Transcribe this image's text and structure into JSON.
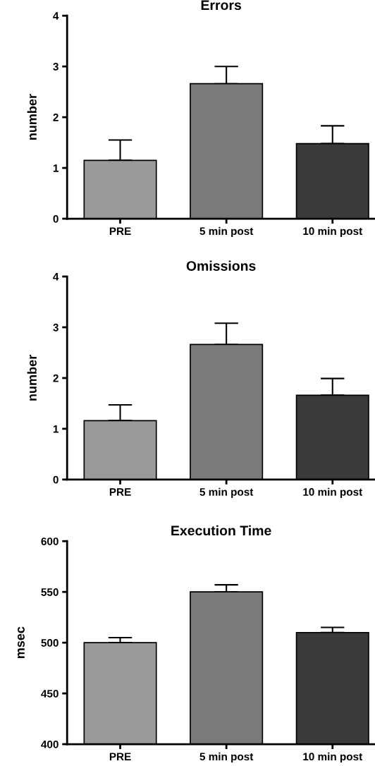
{
  "chart_data": [
    {
      "type": "bar",
      "title": "Errors",
      "ylabel": "number",
      "categories": [
        "PRE",
        "5 min post",
        "10 min post"
      ],
      "values": [
        1.15,
        2.66,
        1.48
      ],
      "errors": [
        [
          1.15,
          1.55
        ],
        [
          2.66,
          3.0
        ],
        [
          1.48,
          1.83
        ]
      ],
      "colors": [
        "#9a9a9a",
        "#7a7a7a",
        "#3a3a3a"
      ],
      "ylim": [
        0,
        4
      ],
      "yticks": [
        0,
        1,
        2,
        3,
        4
      ],
      "grid": false
    },
    {
      "type": "bar",
      "title": "Omissions",
      "ylabel": "number",
      "categories": [
        "PRE",
        "5 min post",
        "10 min post"
      ],
      "values": [
        1.16,
        2.66,
        1.66
      ],
      "errors": [
        [
          1.16,
          1.47
        ],
        [
          2.66,
          3.08
        ],
        [
          1.66,
          1.99
        ]
      ],
      "colors": [
        "#9a9a9a",
        "#7a7a7a",
        "#3a3a3a"
      ],
      "ylim": [
        0,
        4
      ],
      "yticks": [
        0,
        1,
        2,
        3,
        4
      ],
      "grid": false
    },
    {
      "type": "bar",
      "title": "Execution Time",
      "ylabel": "msec",
      "categories": [
        "PRE",
        "5 min post",
        "10 min post"
      ],
      "values": [
        500,
        550,
        510
      ],
      "errors": [
        [
          500,
          505
        ],
        [
          550,
          557
        ],
        [
          510,
          515
        ]
      ],
      "colors": [
        "#9a9a9a",
        "#7a7a7a",
        "#3a3a3a"
      ],
      "ylim": [
        400,
        600
      ],
      "yticks": [
        400,
        450,
        500,
        550,
        600
      ],
      "grid": false
    }
  ]
}
